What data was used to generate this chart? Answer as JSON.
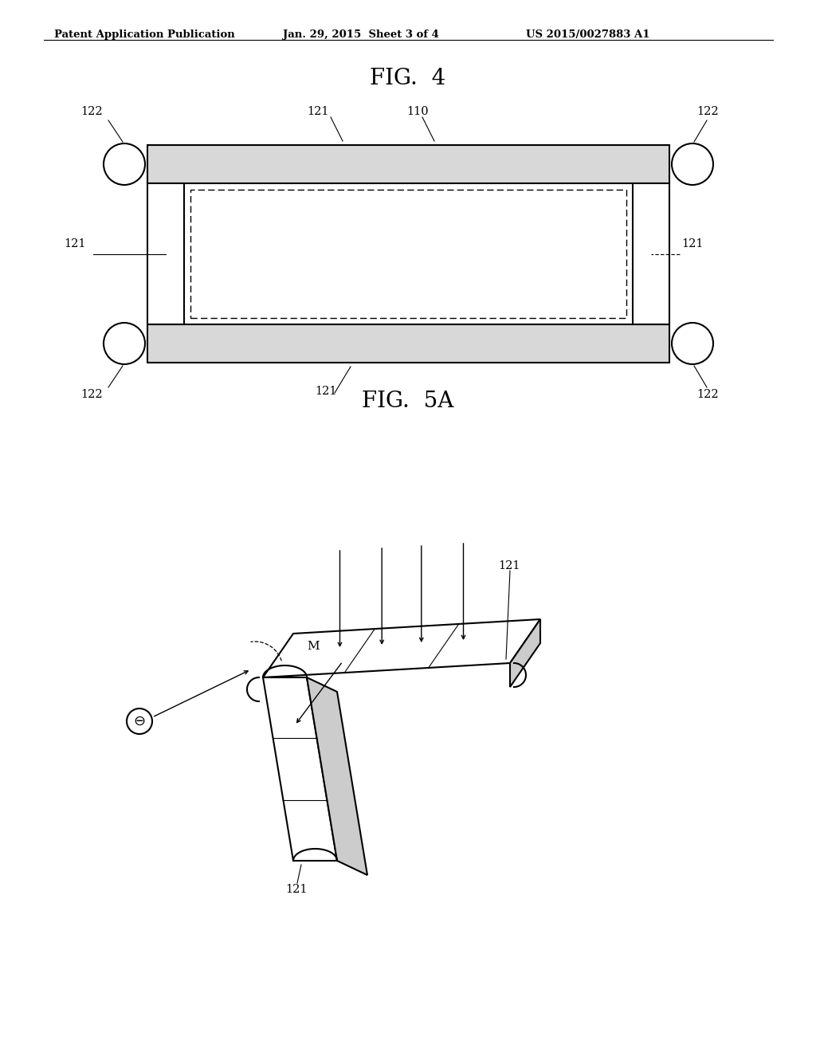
{
  "bg_color": "#ffffff",
  "header_left": "Patent Application Publication",
  "header_mid": "Jan. 29, 2015  Sheet 3 of 4",
  "header_right": "US 2015/0027883 A1",
  "fig4_title": "FIG.  4",
  "fig5a_title": "FIG.  5A",
  "line_color": "#000000"
}
